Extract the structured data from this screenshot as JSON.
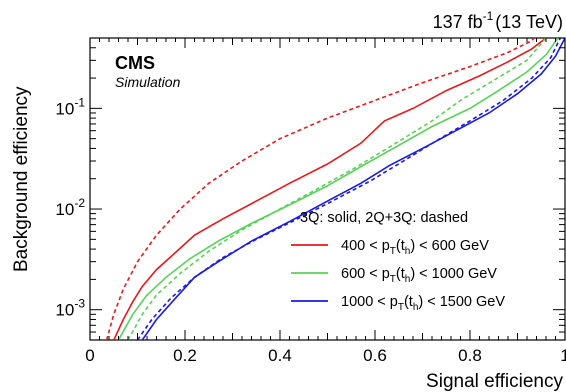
{
  "chart_data": {
    "type": "line",
    "xlabel": "Signal efficiency",
    "ylabel": "Background efficiency",
    "xlim": [
      0,
      1
    ],
    "ylim": [
      0.0005,
      0.5
    ],
    "yscale": "log",
    "x_ticks": [
      "0",
      "0.2",
      "0.4",
      "0.6",
      "0.8",
      "1"
    ],
    "y_ticks": [
      {
        "base": "10",
        "exp": "-3"
      },
      {
        "base": "10",
        "exp": "-2"
      },
      {
        "base": "10",
        "exp": "-1"
      }
    ],
    "grid": false,
    "legend_placement": "bottom-right",
    "labels": {
      "experiment": "CMS",
      "status": "Simulation",
      "lumi": "137 fb",
      "lumi_exp": "-1",
      "energy": "(13 TeV)"
    },
    "legend": {
      "header": "3Q: solid, 2Q+3Q: dashed",
      "entries": [
        {
          "pre": "400 < p",
          "sub1": "T",
          "mid": "(t",
          "sub2": "h",
          "post": ") < 600 GeV",
          "color": "#e8191b"
        },
        {
          "pre": "600 < p",
          "sub1": "T",
          "mid": "(t",
          "sub2": "h",
          "post": ") < 1000 GeV",
          "color": "#58d158"
        },
        {
          "pre": "1000 < p",
          "sub1": "T",
          "mid": "(t",
          "sub2": "h",
          "post": ") < 1500 GeV",
          "color": "#1a1ae6"
        }
      ]
    },
    "series": [
      {
        "color": "#e8191b",
        "style": "solid",
        "points": [
          [
            0.05,
            0.0005
          ],
          [
            0.07,
            0.0008
          ],
          [
            0.09,
            0.0012
          ],
          [
            0.11,
            0.0017
          ],
          [
            0.14,
            0.0025
          ],
          [
            0.18,
            0.0037
          ],
          [
            0.22,
            0.0055
          ],
          [
            0.28,
            0.008
          ],
          [
            0.35,
            0.012
          ],
          [
            0.42,
            0.018
          ],
          [
            0.5,
            0.028
          ],
          [
            0.57,
            0.045
          ],
          [
            0.62,
            0.075
          ],
          [
            0.68,
            0.1
          ],
          [
            0.75,
            0.15
          ],
          [
            0.82,
            0.21
          ],
          [
            0.88,
            0.29
          ],
          [
            0.93,
            0.39
          ],
          [
            0.96,
            0.5
          ]
        ]
      },
      {
        "color": "#e8191b",
        "style": "dashed",
        "points": [
          [
            0.035,
            0.0005
          ],
          [
            0.05,
            0.0009
          ],
          [
            0.07,
            0.0016
          ],
          [
            0.1,
            0.003
          ],
          [
            0.14,
            0.0055
          ],
          [
            0.19,
            0.01
          ],
          [
            0.25,
            0.018
          ],
          [
            0.32,
            0.03
          ],
          [
            0.4,
            0.05
          ],
          [
            0.5,
            0.08
          ],
          [
            0.6,
            0.12
          ],
          [
            0.7,
            0.18
          ],
          [
            0.8,
            0.26
          ],
          [
            0.88,
            0.36
          ],
          [
            0.93,
            0.47
          ],
          [
            0.935,
            0.5
          ]
        ]
      },
      {
        "color": "#58d158",
        "style": "solid",
        "points": [
          [
            0.06,
            0.0005
          ],
          [
            0.09,
            0.0009
          ],
          [
            0.12,
            0.0014
          ],
          [
            0.16,
            0.0021
          ],
          [
            0.21,
            0.0032
          ],
          [
            0.27,
            0.0048
          ],
          [
            0.34,
            0.0072
          ],
          [
            0.42,
            0.011
          ],
          [
            0.5,
            0.017
          ],
          [
            0.58,
            0.028
          ],
          [
            0.65,
            0.043
          ],
          [
            0.72,
            0.066
          ],
          [
            0.8,
            0.1
          ],
          [
            0.86,
            0.15
          ],
          [
            0.92,
            0.23
          ],
          [
            0.96,
            0.34
          ],
          [
            0.985,
            0.5
          ]
        ]
      },
      {
        "color": "#58d158",
        "style": "dashed",
        "points": [
          [
            0.08,
            0.0005
          ],
          [
            0.11,
            0.0009
          ],
          [
            0.14,
            0.0014
          ],
          [
            0.19,
            0.0023
          ],
          [
            0.25,
            0.0038
          ],
          [
            0.32,
            0.0062
          ],
          [
            0.4,
            0.01
          ],
          [
            0.48,
            0.016
          ],
          [
            0.56,
            0.026
          ],
          [
            0.64,
            0.044
          ],
          [
            0.72,
            0.075
          ],
          [
            0.78,
            0.12
          ],
          [
            0.85,
            0.19
          ],
          [
            0.92,
            0.3
          ],
          [
            0.96,
            0.5
          ]
        ]
      },
      {
        "color": "#1a1ae6",
        "style": "solid",
        "points": [
          [
            0.11,
            0.0005
          ],
          [
            0.14,
            0.0008
          ],
          [
            0.18,
            0.0013
          ],
          [
            0.22,
            0.0021
          ],
          [
            0.27,
            0.003
          ],
          [
            0.34,
            0.0048
          ],
          [
            0.42,
            0.0075
          ],
          [
            0.5,
            0.012
          ],
          [
            0.57,
            0.018
          ],
          [
            0.63,
            0.027
          ],
          [
            0.7,
            0.04
          ],
          [
            0.77,
            0.06
          ],
          [
            0.84,
            0.09
          ],
          [
            0.9,
            0.14
          ],
          [
            0.95,
            0.22
          ],
          [
            0.98,
            0.33
          ],
          [
            1.0,
            0.5
          ]
        ]
      },
      {
        "color": "#1a1ae6",
        "style": "dashed",
        "points": [
          [
            0.1,
            0.0005
          ],
          [
            0.13,
            0.0008
          ],
          [
            0.17,
            0.0013
          ],
          [
            0.22,
            0.0021
          ],
          [
            0.28,
            0.0033
          ],
          [
            0.35,
            0.005
          ],
          [
            0.43,
            0.0077
          ],
          [
            0.51,
            0.012
          ],
          [
            0.59,
            0.019
          ],
          [
            0.66,
            0.03
          ],
          [
            0.73,
            0.048
          ],
          [
            0.8,
            0.075
          ],
          [
            0.87,
            0.12
          ],
          [
            0.93,
            0.2
          ],
          [
            0.97,
            0.32
          ],
          [
            0.99,
            0.5
          ]
        ]
      }
    ]
  }
}
